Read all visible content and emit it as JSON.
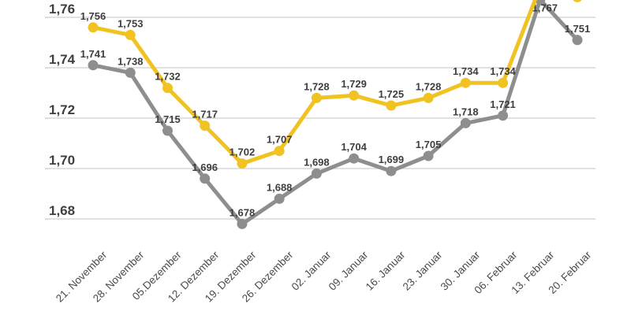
{
  "chart_data": {
    "type": "line",
    "categories": [
      "21. November",
      "28. November",
      "05.Dezember",
      "12. Dezember",
      "19. Dezember",
      "26. Dezember",
      "02. Januar",
      "09. Januar",
      "16. Januar",
      "23. Januar",
      "30. Januar",
      "06. Februar",
      "13. Februar",
      "20. Februar"
    ],
    "series": [
      {
        "name": "gray-series",
        "color": "#8e8e8e",
        "values": [
          1.741,
          1.738,
          1.715,
          1.696,
          1.678,
          1.688,
          1.698,
          1.704,
          1.699,
          1.705,
          1.718,
          1.721,
          1.767,
          1.751
        ],
        "labels": [
          "1,741",
          "1,738",
          "1,715",
          "1,696",
          "1,678",
          "1,688",
          "1,698",
          "1,704",
          "1,699",
          "1,705",
          "1,718",
          "1,721",
          "1,767",
          "1,751"
        ]
      },
      {
        "name": "yellow-series",
        "color": "#f0c323",
        "values": [
          1.756,
          1.753,
          1.732,
          1.717,
          1.702,
          1.707,
          1.728,
          1.729,
          1.725,
          1.728,
          1.734,
          1.734,
          1.772,
          1.768
        ],
        "labels": [
          "1,756",
          "1,753",
          "1,732",
          "1,717",
          "1,702",
          "1,707",
          "1,728",
          "1,729",
          "1,725",
          "1,728",
          "1,734",
          "1,734",
          null,
          null
        ],
        "note": "last two points rise above the cropped top edge of the image; their values are estimated from the visible line slope and no labels are shown"
      }
    ],
    "y_axis": {
      "ticks": [
        {
          "value": 1.76,
          "label": "1,76"
        },
        {
          "value": 1.74,
          "label": "1,74"
        },
        {
          "value": 1.72,
          "label": "1,72"
        },
        {
          "value": 1.7,
          "label": "1,70"
        },
        {
          "value": 1.68,
          "label": "1,68"
        }
      ]
    },
    "grid": true,
    "legend": "none visible (image cropped at top)",
    "title": ""
  }
}
